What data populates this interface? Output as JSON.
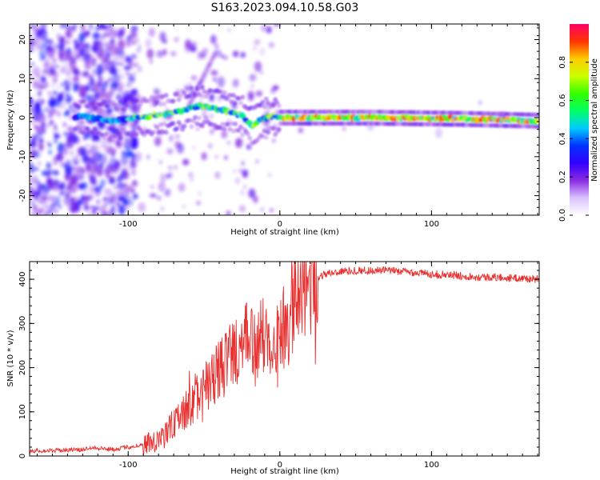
{
  "title": "S163.2023.094.10.58.G03",
  "chart_data": [
    {
      "type": "heatmap",
      "xlabel": "Height of straight line (km)",
      "ylabel": "Frequency (Hz)",
      "xlim": [
        -165,
        171
      ],
      "ylim": [
        -25,
        24
      ],
      "xticks": [
        -100,
        0,
        100
      ],
      "yticks": [
        -20,
        -10,
        0,
        10,
        20
      ],
      "colormap": [
        "#ffffff",
        "#d9c2ff",
        "#8a2be2",
        "#3300ff",
        "#0033ff",
        "#00ccff",
        "#00ff66",
        "#33ff00",
        "#ccff00",
        "#ffcc00",
        "#ff3300",
        "#ff0066"
      ],
      "ridge": [
        {
          "x": -130,
          "f": 0.2
        },
        {
          "x": -110,
          "f": -0.8
        },
        {
          "x": -95,
          "f": 0.0
        },
        {
          "x": -85,
          "f": 0.5
        },
        {
          "x": -75,
          "f": 1.0
        },
        {
          "x": -65,
          "f": 1.8
        },
        {
          "x": -55,
          "f": 3.0
        },
        {
          "x": -45,
          "f": 2.6
        },
        {
          "x": -35,
          "f": 1.6
        },
        {
          "x": -25,
          "f": 0.6
        },
        {
          "x": -18,
          "f": -2.2
        },
        {
          "x": -12,
          "f": -0.5
        },
        {
          "x": -5,
          "f": 0.3
        },
        {
          "x": 0,
          "f": 0.0
        },
        {
          "x": 60,
          "f": 0.0
        },
        {
          "x": 120,
          "f": -0.3
        },
        {
          "x": 171,
          "f": -0.8
        }
      ],
      "colorbar": {
        "label": "Normalized spectral amplitude",
        "ticks": [
          0.0,
          0.2,
          0.4,
          0.6,
          0.8
        ],
        "tick_labels": [
          "0.0",
          "0.2",
          "0.4",
          "0.6",
          "0.8"
        ],
        "range": [
          0,
          1
        ]
      }
    },
    {
      "type": "line",
      "xlabel": "Height of straight line (km)",
      "ylabel": "SNR (10 * v/v)",
      "xlim": [
        -165,
        171
      ],
      "ylim": [
        0,
        440
      ],
      "xticks": [
        -100,
        0,
        100
      ],
      "yticks": [
        0,
        100,
        200,
        300,
        400
      ],
      "line_color": "#e8302f",
      "series": [
        {
          "x": [
            -165,
            -150,
            -140,
            -130,
            -125,
            -120,
            -110,
            -100,
            -90,
            -80,
            -70,
            -60,
            -50,
            -40,
            -30,
            -25,
            -20,
            -15,
            -10,
            -5,
            0,
            5,
            10,
            15,
            20,
            25,
            30,
            40,
            50,
            60,
            70,
            80,
            90,
            100,
            110,
            120,
            130,
            140,
            150,
            160,
            171
          ],
          "values": [
            12,
            12,
            14,
            14,
            20,
            18,
            15,
            20,
            25,
            40,
            70,
            110,
            150,
            190,
            240,
            250,
            260,
            265,
            270,
            275,
            270,
            300,
            350,
            380,
            395,
            405,
            412,
            418,
            420,
            420,
            420,
            418,
            415,
            412,
            410,
            408,
            405,
            405,
            403,
            402,
            400
          ]
        }
      ]
    }
  ]
}
